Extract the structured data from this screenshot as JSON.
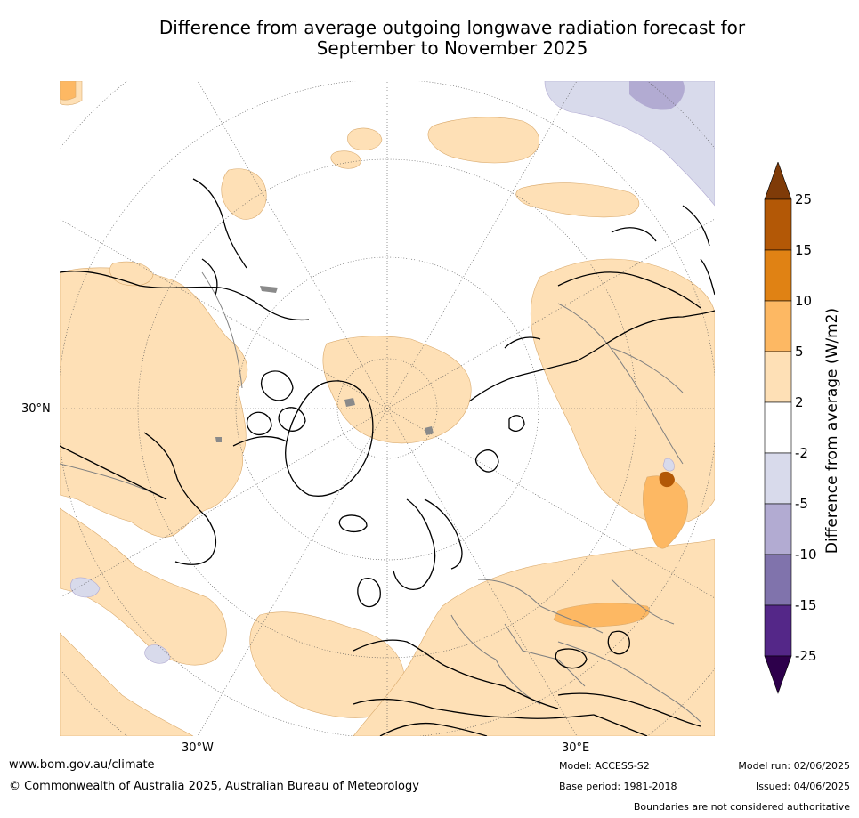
{
  "title_line1": "Difference from average outgoing longwave radiation forecast for",
  "title_line2": "September to November 2025",
  "map": {
    "projection": "north-polar-stereographic",
    "lat_labels": [
      "30°N"
    ],
    "lon_labels": [
      "30°W",
      "30°E"
    ],
    "ocean_color": "#ffffff",
    "coastline_color": "#000000",
    "border_color": "#808080"
  },
  "colorbar": {
    "label": "Difference from average (W/m2)",
    "ticks": [
      "25",
      "15",
      "10",
      "5",
      "2",
      "-2",
      "-5",
      "-10",
      "-15",
      "-25"
    ],
    "colors": {
      "above_25": "#7f3b08",
      "15_25": "#b35806",
      "10_15": "#e08214",
      "5_10": "#fdb863",
      "2_5": "#fee0b6",
      "neutral": "#ffffff",
      "m2_m5": "#d8daeb",
      "m5_m10": "#b2abd2",
      "m10_m15": "#8073ac",
      "m15_m25": "#542788",
      "below_m25": "#2d004b"
    }
  },
  "footer": {
    "url": "www.bom.gov.au/climate",
    "copyright": "© Commonwealth of Australia 2025, Australian Bureau of Meteorology",
    "model": "Model: ACCESS-S2",
    "base_period": "Base period: 1981-2018",
    "model_run": "Model run: 02/06/2025",
    "issued": "Issued: 04/06/2025",
    "boundaries_note": "Boundaries are not considered authoritative"
  }
}
